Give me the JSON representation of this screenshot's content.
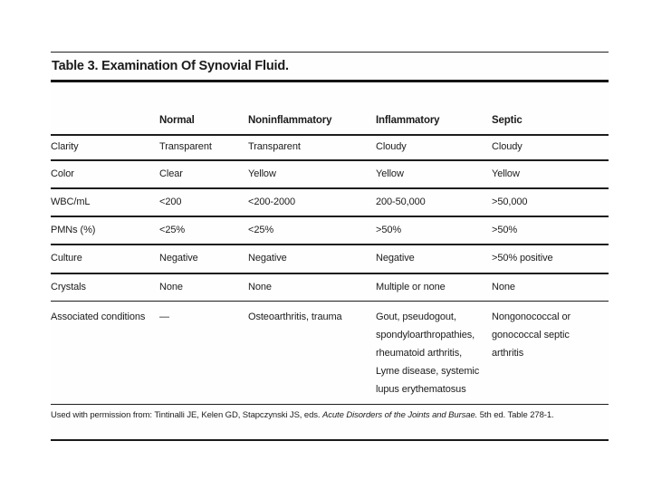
{
  "scan": {
    "title": "Table 3. Examination Of Synovial Fluid.",
    "columns": [
      "",
      "Normal",
      "Noninflammatory",
      "Inflammatory",
      "Septic"
    ],
    "rows": [
      {
        "label": "Clarity",
        "values": [
          "Transparent",
          "Transparent",
          "Cloudy",
          "Cloudy"
        ]
      },
      {
        "label": "Color",
        "values": [
          "Clear",
          "Yellow",
          "Yellow",
          "Yellow"
        ]
      },
      {
        "label": "WBC/mL",
        "values": [
          "<200",
          "<200-2000",
          "200-50,000",
          ">50,000"
        ]
      },
      {
        "label": "PMNs (%)",
        "values": [
          "<25%",
          "<25%",
          ">50%",
          ">50%"
        ]
      },
      {
        "label": "Culture",
        "values": [
          "Negative",
          "Negative",
          "Negative",
          ">50% positive"
        ]
      },
      {
        "label": "Crystals",
        "values": [
          "None",
          "None",
          "Multiple or none",
          "None"
        ]
      },
      {
        "label": "Associated conditions",
        "values": [
          "—",
          "Osteoarthritis, trauma",
          "Gout, pseudogout, spondyloarthropathies, rheumatoid arthritis, Lyme disease, systemic lupus erythematosus",
          "Nongonococcal or gonococcal septic arthritis"
        ]
      }
    ],
    "footnote": {
      "prefix": "Used with permission from: Tintinalli JE, Kelen GD, Stapczynski JS, eds. ",
      "italic": "Acute Disorders of the Joints and Bursae.",
      "suffix": " 5th ed. Table 278-1."
    },
    "colors": {
      "ink": "#1c1c1c",
      "background": "#ffffff"
    }
  }
}
